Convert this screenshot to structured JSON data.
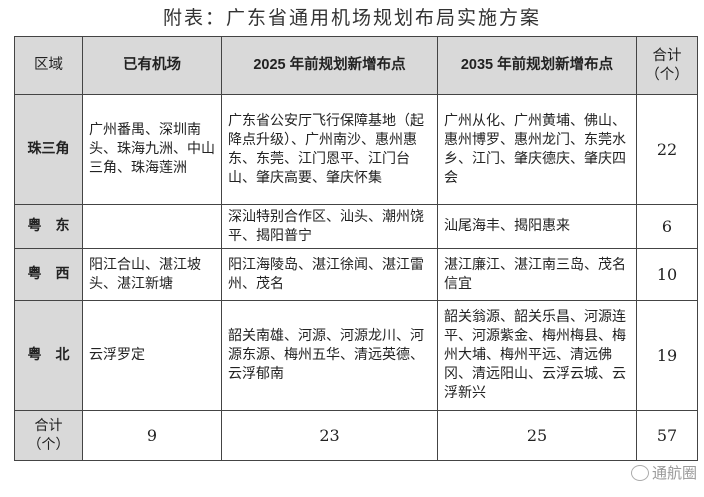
{
  "title": "附表：广东省通用机场规划布局实施方案",
  "headers": [
    "区域",
    "已有机场",
    "2025 年前规划新增布点",
    "2035 年前规划新增布点",
    "合计（个）"
  ],
  "rows": [
    {
      "region": "珠三角",
      "existing": "广州番禺、深圳南头、珠海九洲、中山三角、珠海莲洲",
      "plan2025": "广东省公安厅飞行保障基地（起降点升级）、广州南沙、惠州惠东、东莞、江门恩平、江门台山、肇庆高要、肇庆怀集",
      "plan2035": "广州从化、广州黄埔、佛山、惠州博罗、惠州龙门、东莞水乡、江门、肇庆德庆、肇庆四会",
      "total": "22"
    },
    {
      "region": "粤　东",
      "existing": "",
      "plan2025": "深汕特别合作区、汕头、潮州饶平、揭阳普宁",
      "plan2035": "汕尾海丰、揭阳惠来",
      "total": "6"
    },
    {
      "region": "粤　西",
      "existing": "阳江合山、湛江坡头、湛江新塘",
      "plan2025": "阳江海陵岛、湛江徐闻、湛江雷州、茂名",
      "plan2035": "湛江廉江、湛江南三岛、茂名信宜",
      "total": "10"
    },
    {
      "region": "粤　北",
      "existing": "云浮罗定",
      "plan2025": "韶关南雄、河源、河源龙川、河源东源、梅州五华、清远英德、云浮郁南",
      "plan2035": "韶关翁源、韶关乐昌、河源连平、河源紫金、梅州梅县、梅州大埔、梅州平远、清远佛冈、清远阳山、云浮云城、云浮新兴",
      "total": "19"
    }
  ],
  "totals": {
    "label": "合计（个）",
    "existing": "9",
    "plan2025": "23",
    "plan2035": "25",
    "total": "57"
  },
  "watermark": "通航圈"
}
